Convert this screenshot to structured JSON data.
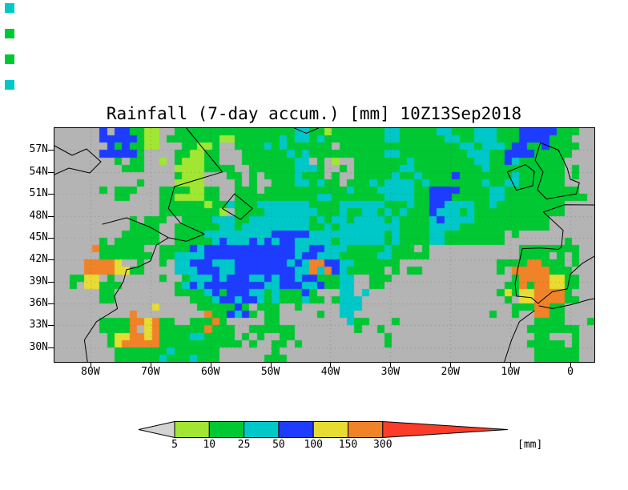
{
  "chart_data": {
    "type": "heatmap",
    "title": "Rainfall (7-day accum.) [mm] 10Z13Sep2018",
    "variable": "Rainfall (7-day accum.)",
    "unit": "mm",
    "timestamp": "10Z13Sep2018",
    "x_ticks": [
      "80W",
      "70W",
      "60W",
      "50W",
      "40W",
      "30W",
      "20W",
      "10W",
      "0"
    ],
    "y_ticks": [
      "57N",
      "54N",
      "51N",
      "48N",
      "45N",
      "42N",
      "39N",
      "36N",
      "33N",
      "30N"
    ],
    "lon_range": [
      -86,
      4
    ],
    "lat_range": [
      28,
      60
    ],
    "grid_on": true,
    "legend_position": "bottom",
    "colorbar": {
      "levels": [
        "5",
        "10",
        "25",
        "50",
        "100",
        "150",
        "300"
      ],
      "unit_label": "[mm]",
      "below_color": "#d4d4d4",
      "segment_colors": [
        "#a0e632",
        "#00c832",
        "#00c8c8",
        "#1e3cff",
        "#e6dc32",
        "#f08228"
      ],
      "above_color": "#fa3c28"
    },
    "palette": [
      "#b4b4b4",
      "#a0e632",
      "#00c832",
      "#00c8c8",
      "#1e3cff",
      "#e6dc32",
      "#f08228",
      "#fa3c28"
    ],
    "palette_meaning_mm": [
      "<5",
      "5-10",
      "10-25",
      "25-50",
      "50-100",
      "100-150",
      "150-300",
      ">300"
    ],
    "grid_note": "coarse 16x32deg categorical field, rows north(60N) to south(28N), cols west(86W) to east(4E), digits index palette",
    "grid_rows_lat_60N_to_28N": [
      "000442102221222232222232223232244220",
      "000442002120222322122232222332442220",
      "000022001120022232002223222232222200",
      "000002001102202232202232322222322200",
      "000020022120222223222233244223222220",
      "000000022221223332233322243322222200",
      "000002202223233332233332233222222000",
      "000022202233334433333322232222000000",
      "000222023344444443322232200000022220",
      "006652023443444436432202000000266200",
      "025200002344443443230200000000266520",
      "000200000234432232030000000000256620",
      "000000000022322020030000000000226200",
      "000226522262002000002000000000002220",
      "000256622322020200000020000000022200",
      "000022232220002000000000000000002220"
    ]
  },
  "corner_marks": [
    {
      "y": 4,
      "color": "#00c8c8"
    },
    {
      "y": 36,
      "color": "#00c832"
    },
    {
      "y": 68,
      "color": "#00c832"
    },
    {
      "y": 100,
      "color": "#00c8c8"
    }
  ]
}
